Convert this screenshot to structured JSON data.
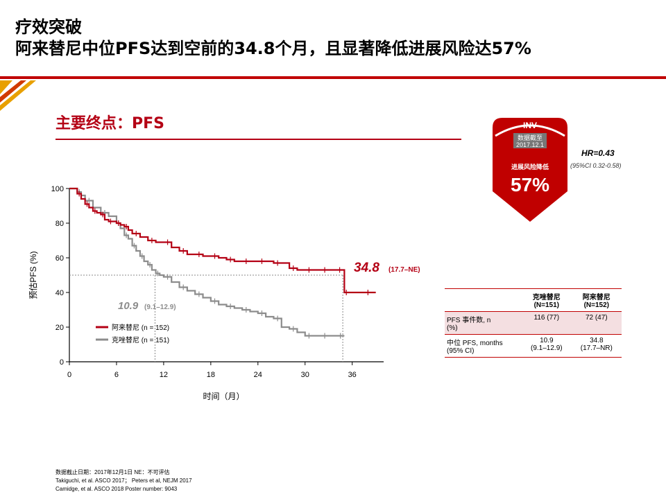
{
  "slide": {
    "title_line1": "疗效突破",
    "title_line2": "阿来替尼中位PFS达到空前的34.8个月，且显著降低进展风险达57%",
    "section_title": "主要终点：PFS"
  },
  "badge": {
    "inv": "INV",
    "cutoff_label": "数据截至",
    "cutoff_date": "2017.12.1",
    "risk_label": "进展风险降低",
    "risk_value": "57%"
  },
  "hr": {
    "hr_text": "HR=0.43",
    "ci_text": "(95%CI 0.32-0.58)"
  },
  "table": {
    "headers": [
      "",
      "克唑替尼\n(N=151)",
      "阿来替尼\n(N=152)"
    ],
    "rows": [
      [
        "PFS 事件数, n\n(%)",
        "116 (77)",
        "72 (47)"
      ],
      [
        "中位 PFS, months\n(95% CI)",
        "10.9\n(9.1–12.9)",
        "34.8\n(17.7–NR)"
      ]
    ]
  },
  "footer": {
    "lines": [
      "数据截止日期：2017年12月1日    NE：不可评估",
      "Takiguchi, et al. ASCO 2017；  Peters et al, NEJM 2017",
      "Camidge, et al. ASCO 2018 Poster number: 9043"
    ]
  },
  "colors": {
    "alectinib": "#b40014",
    "crizotinib": "#8c8c8c",
    "accent": "#c00000",
    "guide": "#888888"
  },
  "chart_data": {
    "type": "line",
    "xlabel": "时间（月）",
    "ylabel": "预估PFS (%)",
    "xlim": [
      0,
      40
    ],
    "ylim": [
      0,
      100
    ],
    "xticks": [
      0,
      6,
      12,
      18,
      24,
      30,
      36
    ],
    "yticks": [
      0,
      20,
      40,
      60,
      80,
      100
    ],
    "legend_position": "lower-left",
    "series": [
      {
        "name": "阿来替尼 (n = 152)",
        "color": "#b40014",
        "x": [
          0,
          1,
          1.5,
          2,
          2.5,
          3,
          3.5,
          4,
          4.5,
          5,
          5.5,
          6,
          6.5,
          7,
          7.5,
          8,
          9,
          10,
          11,
          12,
          13,
          14,
          15,
          16,
          17,
          18,
          19,
          20,
          21,
          22,
          23,
          24,
          25,
          26,
          27,
          28,
          29,
          30,
          31,
          32,
          33,
          34,
          34.8,
          35,
          35.5,
          37,
          39
        ],
        "y": [
          100,
          97,
          94,
          91,
          89,
          87,
          86,
          85,
          82,
          81,
          81,
          80,
          79,
          78,
          76,
          74,
          72,
          70,
          69,
          69,
          66,
          64,
          62,
          62,
          61,
          61,
          60,
          59,
          58,
          58,
          58,
          58,
          58,
          57,
          57,
          54,
          53,
          53,
          53,
          53,
          53,
          53,
          53,
          40,
          40,
          40,
          40
        ]
      },
      {
        "name": "克唑替尼 (n = 151)",
        "color": "#8c8c8c",
        "x": [
          0,
          1,
          1.5,
          2,
          3,
          4,
          5,
          6,
          6.5,
          7,
          7.5,
          8,
          8.5,
          9,
          9.5,
          10,
          10.5,
          11,
          11.5,
          12,
          13,
          14,
          15,
          16,
          17,
          18,
          19,
          20,
          21,
          22,
          23,
          24,
          25,
          26,
          27,
          28,
          29,
          30,
          31,
          32,
          33,
          34,
          35
        ],
        "y": [
          100,
          98,
          96,
          93,
          89,
          86,
          84,
          80,
          77,
          73,
          71,
          67,
          64,
          61,
          58,
          56,
          53,
          51,
          50,
          49,
          46,
          43,
          41,
          39,
          37,
          35,
          33,
          32,
          31,
          30,
          29,
          28,
          26,
          25,
          20,
          19,
          17,
          15,
          15,
          15,
          15,
          15,
          15
        ]
      }
    ],
    "annotations": [
      {
        "label": "34.8",
        "ci": "(17.7–NE)",
        "x": 34.8,
        "y": 50
      },
      {
        "label": "10.9",
        "ci": "(9.1–12.9)",
        "x": 10.9,
        "y": 50
      }
    ]
  }
}
